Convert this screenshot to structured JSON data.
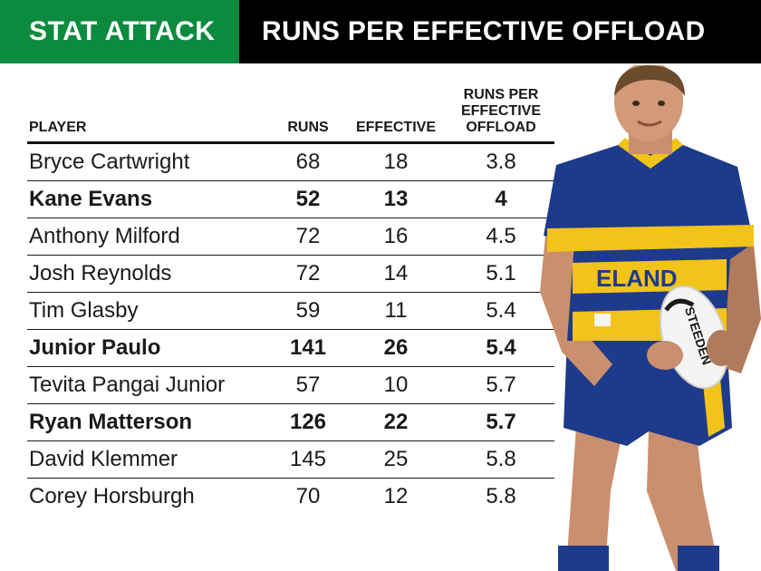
{
  "banner": {
    "left": "STAT ATTACK",
    "right": "RUNS PER EFFECTIVE OFFLOAD"
  },
  "table": {
    "headers": {
      "player": "PLAYER",
      "runs": "RUNS",
      "effective": "EFFECTIVE",
      "rpeo_line1": "RUNS PER",
      "rpeo_line2": "EFFECTIVE",
      "rpeo_line3": "OFFLOAD"
    },
    "rows": [
      {
        "player": "Bryce Cartwright",
        "runs": "68",
        "effective": "18",
        "rpeo": "3.8",
        "bold": false
      },
      {
        "player": "Kane Evans",
        "runs": "52",
        "effective": "13",
        "rpeo": "4",
        "bold": true
      },
      {
        "player": "Anthony Milford",
        "runs": "72",
        "effective": "16",
        "rpeo": "4.5",
        "bold": false
      },
      {
        "player": "Josh Reynolds",
        "runs": "72",
        "effective": "14",
        "rpeo": "5.1",
        "bold": false
      },
      {
        "player": "Tim Glasby",
        "runs": "59",
        "effective": "11",
        "rpeo": "5.4",
        "bold": false
      },
      {
        "player": "Junior Paulo",
        "runs": "141",
        "effective": "26",
        "rpeo": "5.4",
        "bold": true
      },
      {
        "player": "Tevita Pangai Junior",
        "runs": "57",
        "effective": "10",
        "rpeo": "5.7",
        "bold": false
      },
      {
        "player": "Ryan Matterson",
        "runs": "126",
        "effective": "22",
        "rpeo": "5.7",
        "bold": true
      },
      {
        "player": "David Klemmer",
        "runs": "145",
        "effective": "25",
        "rpeo": "5.8",
        "bold": false
      },
      {
        "player": "Corey Horsburgh",
        "runs": "70",
        "effective": "12",
        "rpeo": "5.8",
        "bold": false
      }
    ]
  },
  "photo": {
    "jersey_text": "ELAND",
    "ball_text": "STEEDEN"
  },
  "colors": {
    "banner_green": "#0c8a3e",
    "banner_black": "#000000",
    "jersey_blue": "#1e3a8a",
    "jersey_gold": "#f2c318"
  }
}
